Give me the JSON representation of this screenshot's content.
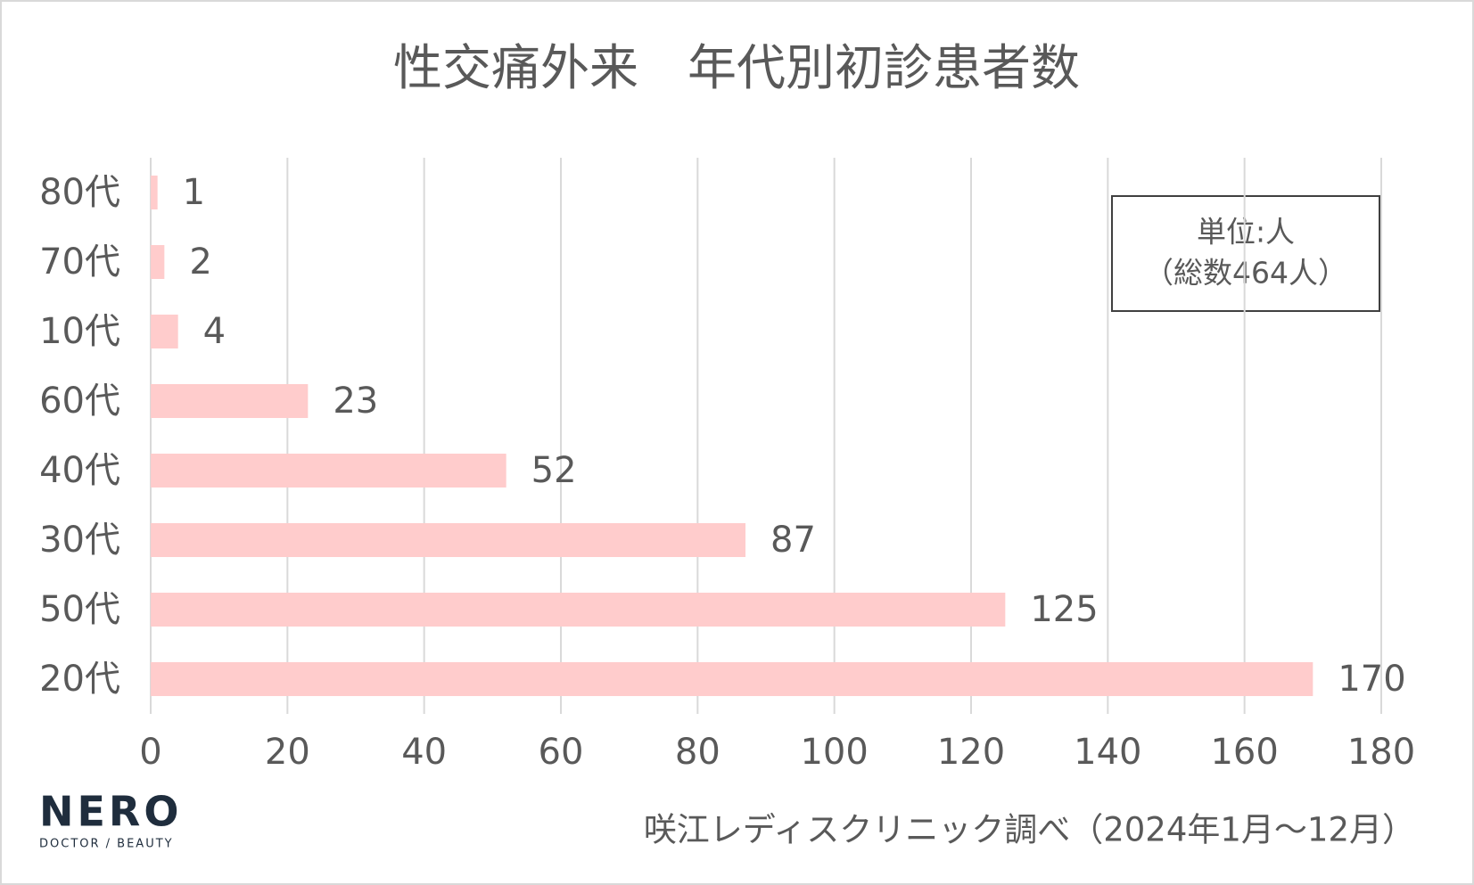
{
  "chart_data": {
    "type": "barh",
    "title": "性交痛外来　年代別初診患者数",
    "categories": [
      "80代",
      "70代",
      "10代",
      "60代",
      "40代",
      "30代",
      "50代",
      "20代"
    ],
    "values": [
      1,
      2,
      4,
      23,
      52,
      87,
      125,
      170
    ],
    "color": "#ffcccc",
    "xlim": [
      0,
      180
    ],
    "xticks": [
      0,
      20,
      40,
      60,
      80,
      100,
      120,
      140,
      160,
      180
    ],
    "grid": true,
    "notes": [
      "単位:人",
      "（総数464人）"
    ],
    "source": "咲江レディスクリニック調べ（2024年1月〜12月）"
  },
  "logo": {
    "name": "NERO",
    "tagline": "DOCTOR / BEAUTY"
  }
}
